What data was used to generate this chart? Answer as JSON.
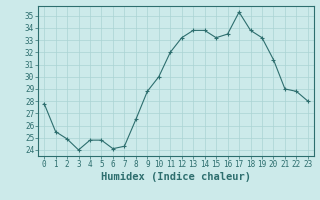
{
  "x": [
    0,
    1,
    2,
    3,
    4,
    5,
    6,
    7,
    8,
    9,
    10,
    11,
    12,
    13,
    14,
    15,
    16,
    17,
    18,
    19,
    20,
    21,
    22,
    23
  ],
  "y": [
    27.8,
    25.5,
    24.9,
    24.0,
    24.8,
    24.8,
    24.1,
    24.3,
    26.5,
    28.8,
    30.0,
    32.0,
    33.2,
    33.8,
    33.8,
    33.2,
    33.5,
    35.3,
    33.8,
    33.2,
    31.4,
    29.0,
    28.8,
    28.0
  ],
  "line_color": "#2d6e6e",
  "marker": "+",
  "marker_size": 3,
  "bg_color": "#cceaea",
  "grid_color": "#aad4d4",
  "xlabel": "Humidex (Indice chaleur)",
  "ylim": [
    23.5,
    35.8
  ],
  "xlim": [
    -0.5,
    23.5
  ],
  "yticks": [
    24,
    25,
    26,
    27,
    28,
    29,
    30,
    31,
    32,
    33,
    34,
    35
  ],
  "xticks": [
    0,
    1,
    2,
    3,
    4,
    5,
    6,
    7,
    8,
    9,
    10,
    11,
    12,
    13,
    14,
    15,
    16,
    17,
    18,
    19,
    20,
    21,
    22,
    23
  ],
  "tick_fontsize": 5.5,
  "xlabel_fontsize": 7.5,
  "axis_color": "#2d6e6e",
  "linewidth": 0.8,
  "markeredgewidth": 0.8
}
